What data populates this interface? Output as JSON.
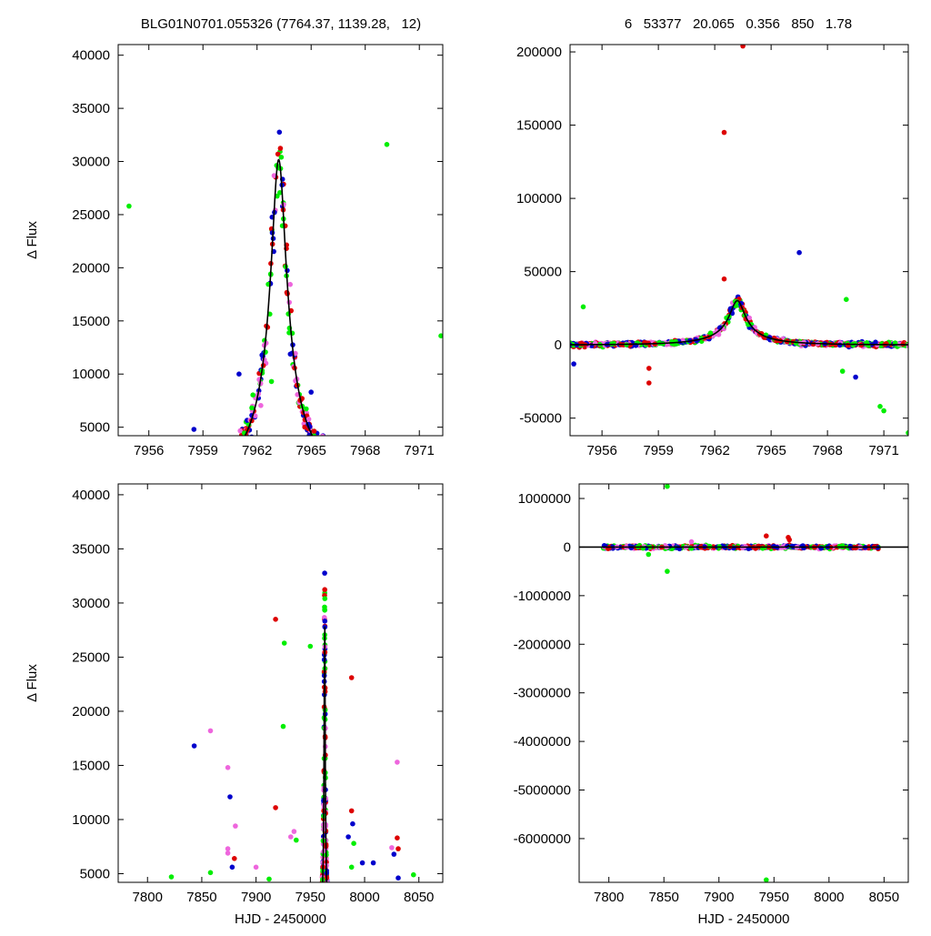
{
  "header": {
    "left_title": "BLG01N0701.055326 (7764.37, 1139.28,   12)",
    "right_title": "6   53377   20.065   0.356   850   1.78"
  },
  "colors": {
    "red": "#dd0000",
    "blue": "#0000cc",
    "green": "#00ee00",
    "magenta": "#ee66dd",
    "model": "#000000"
  },
  "chart_data": [
    {
      "id": "top-left",
      "type": "scatter",
      "xlabel": "",
      "ylabel": "Δ Flux",
      "xlim": [
        7954.3,
        7972.3
      ],
      "ylim": [
        4200,
        41000
      ],
      "xticks": [
        7956,
        7959,
        7962,
        7965,
        7968,
        7971
      ],
      "yticks": [
        5000,
        10000,
        15000,
        20000,
        25000,
        30000,
        35000,
        40000
      ],
      "model": {
        "t0": 7963.2,
        "u0": 0.115,
        "tE": 3.6,
        "scale": 3900,
        "base": 0
      },
      "outliers": [
        {
          "x": 7954.9,
          "y": 25800,
          "c": "green"
        },
        {
          "x": 7969.2,
          "y": 31600,
          "c": "green"
        },
        {
          "x": 7972.2,
          "y": 13600,
          "c": "green"
        },
        {
          "x": 7962.8,
          "y": 9300,
          "c": "green"
        },
        {
          "x": 7965.0,
          "y": 8300,
          "c": "blue"
        },
        {
          "x": 7961.0,
          "y": 10000,
          "c": "blue"
        },
        {
          "x": 7958.5,
          "y": 4800,
          "c": "blue"
        }
      ]
    },
    {
      "id": "top-right",
      "type": "scatter",
      "xlabel": "",
      "ylabel": "",
      "xlim": [
        7954.3,
        7972.3
      ],
      "ylim": [
        -62000,
        205000
      ],
      "xticks": [
        7956,
        7959,
        7962,
        7965,
        7968,
        7971
      ],
      "yticks": [
        -50000,
        0,
        50000,
        100000,
        150000,
        200000
      ],
      "model": {
        "t0": 7963.2,
        "u0": 0.115,
        "tE": 3.6,
        "scale": 3900,
        "base": 0
      },
      "outliers": [
        {
          "x": 7963.5,
          "y": 204000,
          "c": "red"
        },
        {
          "x": 7962.5,
          "y": 145000,
          "c": "red"
        },
        {
          "x": 7966.5,
          "y": 63000,
          "c": "blue"
        },
        {
          "x": 7962.5,
          "y": 45000,
          "c": "red"
        },
        {
          "x": 7969.0,
          "y": 31000,
          "c": "green"
        },
        {
          "x": 7955.0,
          "y": 26000,
          "c": "green"
        },
        {
          "x": 7958.5,
          "y": -26000,
          "c": "red"
        },
        {
          "x": 7958.5,
          "y": -16000,
          "c": "red"
        },
        {
          "x": 7969.5,
          "y": -22000,
          "c": "blue"
        },
        {
          "x": 7968.8,
          "y": -18000,
          "c": "green"
        },
        {
          "x": 7970.8,
          "y": -42000,
          "c": "green"
        },
        {
          "x": 7971.0,
          "y": -45000,
          "c": "green"
        },
        {
          "x": 7972.3,
          "y": -60000,
          "c": "green"
        },
        {
          "x": 7954.5,
          "y": -13000,
          "c": "blue"
        }
      ]
    },
    {
      "id": "bottom-left",
      "type": "scatter",
      "xlabel": "HJD - 2450000",
      "ylabel": "Δ Flux",
      "xlim": [
        7773,
        8072
      ],
      "ylim": [
        4200,
        41000
      ],
      "xticks": [
        7800,
        7850,
        7900,
        7950,
        8000,
        8050
      ],
      "yticks": [
        5000,
        10000,
        15000,
        20000,
        25000,
        30000,
        35000,
        40000
      ],
      "model": {
        "t0": 7963.2,
        "u0": 0.115,
        "tE": 3.6,
        "scale": 3900,
        "base": 0
      },
      "outliers": [
        {
          "x": 7822,
          "y": 4700,
          "c": "green"
        },
        {
          "x": 7843,
          "y": 16800,
          "c": "blue"
        },
        {
          "x": 7858,
          "y": 18200,
          "c": "magenta"
        },
        {
          "x": 7858,
          "y": 5100,
          "c": "green"
        },
        {
          "x": 7874,
          "y": 14800,
          "c": "magenta"
        },
        {
          "x": 7876,
          "y": 12100,
          "c": "blue"
        },
        {
          "x": 7881,
          "y": 9400,
          "c": "magenta"
        },
        {
          "x": 7874,
          "y": 7300,
          "c": "magenta"
        },
        {
          "x": 7874,
          "y": 6900,
          "c": "magenta"
        },
        {
          "x": 7880,
          "y": 6400,
          "c": "red"
        },
        {
          "x": 7878,
          "y": 5600,
          "c": "blue"
        },
        {
          "x": 7900,
          "y": 5600,
          "c": "magenta"
        },
        {
          "x": 7912,
          "y": 4500,
          "c": "green"
        },
        {
          "x": 7918,
          "y": 28500,
          "c": "red"
        },
        {
          "x": 7918,
          "y": 11100,
          "c": "red"
        },
        {
          "x": 7926,
          "y": 26300,
          "c": "green"
        },
        {
          "x": 7925,
          "y": 18600,
          "c": "green"
        },
        {
          "x": 7932,
          "y": 8400,
          "c": "magenta"
        },
        {
          "x": 7935,
          "y": 8900,
          "c": "magenta"
        },
        {
          "x": 7937,
          "y": 8100,
          "c": "green"
        },
        {
          "x": 7950,
          "y": 26000,
          "c": "green"
        },
        {
          "x": 7985,
          "y": 8400,
          "c": "blue"
        },
        {
          "x": 7988,
          "y": 23100,
          "c": "red"
        },
        {
          "x": 7988,
          "y": 10800,
          "c": "red"
        },
        {
          "x": 7989,
          "y": 9600,
          "c": "blue"
        },
        {
          "x": 7990,
          "y": 7800,
          "c": "green"
        },
        {
          "x": 7988,
          "y": 5600,
          "c": "green"
        },
        {
          "x": 7998,
          "y": 6000,
          "c": "blue"
        },
        {
          "x": 8008,
          "y": 6000,
          "c": "blue"
        },
        {
          "x": 8025,
          "y": 7400,
          "c": "magenta"
        },
        {
          "x": 8027,
          "y": 6800,
          "c": "blue"
        },
        {
          "x": 8030,
          "y": 15300,
          "c": "magenta"
        },
        {
          "x": 8030,
          "y": 8300,
          "c": "red"
        },
        {
          "x": 8031,
          "y": 7300,
          "c": "red"
        },
        {
          "x": 8031,
          "y": 4600,
          "c": "blue"
        },
        {
          "x": 8045,
          "y": 4900,
          "c": "green"
        }
      ]
    },
    {
      "id": "bottom-right",
      "type": "scatter",
      "xlabel": "HJD - 2450000",
      "ylabel": "",
      "xlim": [
        7773,
        8072
      ],
      "ylim": [
        -6900000,
        1300000
      ],
      "xticks": [
        7800,
        7850,
        7900,
        7950,
        8000,
        8050
      ],
      "yticks": [
        -6000000,
        -5000000,
        -4000000,
        -3000000,
        -2000000,
        -1000000,
        0,
        1000000
      ],
      "model": {
        "t0": 7963.2,
        "u0": 0.115,
        "tE": 3.6,
        "scale": 3900,
        "base": 0
      },
      "outliers": [
        {
          "x": 7853,
          "y": 1250000,
          "c": "green"
        },
        {
          "x": 7853,
          "y": -500000,
          "c": "green"
        },
        {
          "x": 7836,
          "y": -150000,
          "c": "green"
        },
        {
          "x": 7943,
          "y": 230000,
          "c": "red"
        },
        {
          "x": 7963,
          "y": 200000,
          "c": "red"
        },
        {
          "x": 7964,
          "y": 150000,
          "c": "red"
        },
        {
          "x": 7875,
          "y": 110000,
          "c": "magenta"
        },
        {
          "x": 7943,
          "y": -6850000,
          "c": "green"
        }
      ],
      "band": {
        "xmin": 7795,
        "xmax": 8047
      }
    }
  ]
}
